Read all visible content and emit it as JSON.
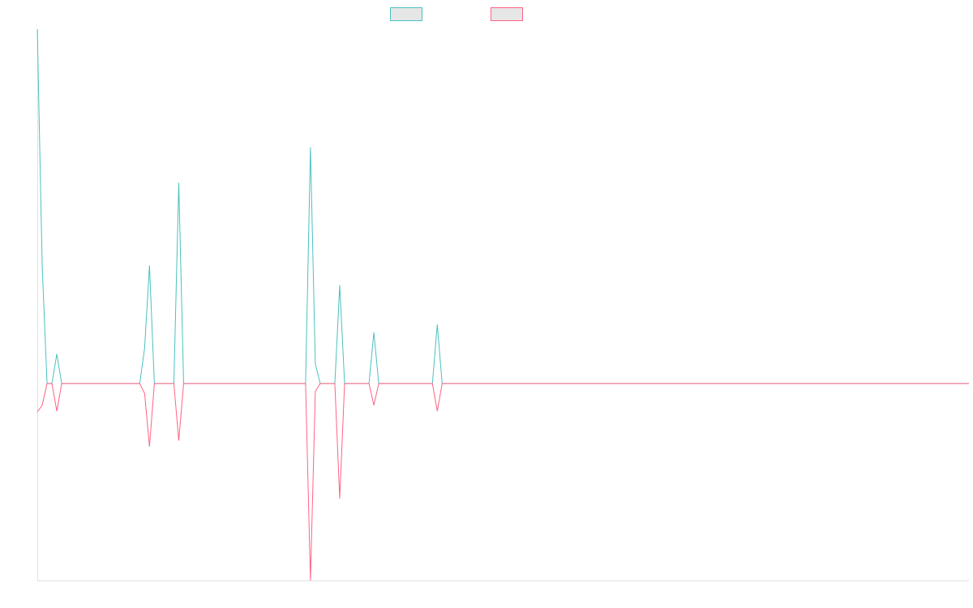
{
  "chart_data": {
    "type": "line",
    "ylim": [
      -5,
      9
    ],
    "grid": false,
    "series": [
      {
        "color": "#4bc0c0",
        "values": [
          9,
          3,
          0,
          0,
          0.75,
          0,
          0,
          0,
          0,
          0,
          0,
          0,
          0,
          0,
          0,
          0,
          0,
          0,
          0,
          0,
          0,
          0,
          0.9,
          3,
          0,
          0,
          0,
          0,
          0,
          5.1,
          0,
          0,
          0,
          0,
          0,
          0,
          0,
          0,
          0,
          0,
          0,
          0,
          0,
          0,
          0,
          0,
          0,
          0,
          0,
          0,
          0,
          0,
          0,
          0,
          0,
          0,
          6,
          0.5,
          0,
          0,
          0,
          0,
          2.5,
          0,
          0,
          0,
          0,
          0,
          0,
          1.3,
          0,
          0,
          0,
          0,
          0,
          0,
          0,
          0,
          0,
          0,
          0,
          0,
          1.5,
          0,
          0,
          0,
          0,
          0,
          0,
          0,
          0,
          0,
          0,
          0,
          0,
          0,
          0,
          0,
          0,
          0,
          0,
          0,
          0,
          0,
          0,
          0,
          0,
          0,
          0,
          0,
          0,
          0,
          0,
          0,
          0,
          0,
          0,
          0,
          0,
          0,
          0,
          0,
          0,
          0,
          0,
          0,
          0,
          0,
          0,
          0,
          0,
          0,
          0,
          0,
          0,
          0,
          0,
          0,
          0,
          0,
          0,
          0,
          0,
          0,
          0,
          0,
          0,
          0,
          0,
          0,
          0,
          0,
          0,
          0,
          0,
          0,
          0,
          0,
          0,
          0,
          0,
          0,
          0,
          0,
          0,
          0,
          0,
          0,
          0,
          0,
          0,
          0,
          0,
          0,
          0,
          0,
          0,
          0,
          0,
          0,
          0,
          0,
          0,
          0,
          0,
          0,
          0,
          0,
          0,
          0,
          0,
          0
        ]
      },
      {
        "color": "#ff6384",
        "values": [
          -0.72,
          -0.55,
          0,
          0,
          -0.7,
          0,
          0,
          0,
          0,
          0,
          0,
          0,
          0,
          0,
          0,
          0,
          0,
          0,
          0,
          0,
          0,
          0,
          -0.25,
          -1.6,
          0,
          0,
          0,
          0,
          0,
          -1.45,
          0,
          0,
          0,
          0,
          0,
          0,
          0,
          0,
          0,
          0,
          0,
          0,
          0,
          0,
          0,
          0,
          0,
          0,
          0,
          0,
          0,
          0,
          0,
          0,
          0,
          0,
          -5,
          -0.2,
          0,
          0,
          0,
          0,
          -2.92,
          0,
          0,
          0,
          0,
          0,
          0,
          -0.55,
          0,
          0,
          0,
          0,
          0,
          0,
          0,
          0,
          0,
          0,
          0,
          0,
          -0.7,
          0,
          0,
          0,
          0,
          0,
          0,
          0,
          0,
          0,
          0,
          0,
          0,
          0,
          0,
          0,
          0,
          0,
          0,
          0,
          0,
          0,
          0,
          0,
          0,
          0,
          0,
          0,
          0,
          0,
          0,
          0,
          0,
          0,
          0,
          0,
          0,
          0,
          0,
          0,
          0,
          0,
          0,
          0,
          0,
          0,
          0,
          0,
          0,
          0,
          0,
          0,
          0,
          0,
          0,
          0,
          0,
          0,
          0,
          0,
          0,
          0,
          0,
          0,
          0,
          0,
          0,
          0,
          0,
          0,
          0,
          0,
          0,
          0,
          0,
          0,
          0,
          0,
          0,
          0,
          0,
          0,
          0,
          0,
          0,
          0,
          0,
          0,
          0,
          0,
          0,
          0,
          0,
          0,
          0,
          0,
          0,
          0,
          0,
          0,
          0,
          0,
          0,
          0,
          0,
          0,
          0,
          0,
          0,
          0
        ]
      }
    ]
  }
}
